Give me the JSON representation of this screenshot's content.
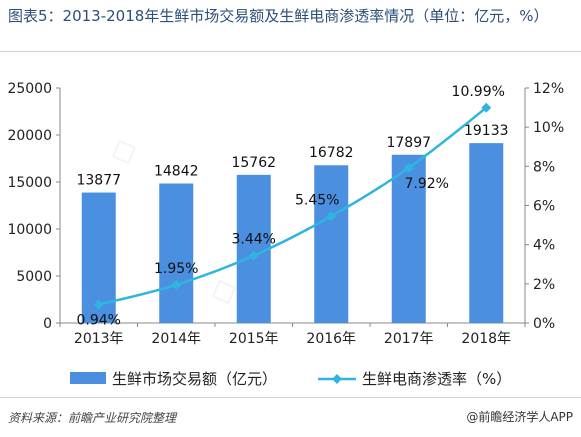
{
  "header": {
    "title": "图表5：2013-2018年生鲜市场交易额及生鲜电商渗透率情况（单位：亿元，%）"
  },
  "footer": {
    "source": "资料来源：前瞻产业研究院整理",
    "brand": "@前瞻经济学人APP"
  },
  "colors": {
    "bar": "#4a8fe0",
    "line": "#2fb5e0",
    "title": "#2c4f7a"
  },
  "chart_data": {
    "type": "bar",
    "categories": [
      "2013年",
      "2014年",
      "2015年",
      "2016年",
      "2017年",
      "2018年"
    ],
    "series": [
      {
        "name": "生鲜市场交易额（亿元）",
        "type": "bar",
        "axis": "left",
        "values": [
          13877,
          14842,
          15762,
          16782,
          17897,
          19133
        ],
        "labels": [
          "13877",
          "14842",
          "15762",
          "16782",
          "17897",
          "19133"
        ]
      },
      {
        "name": "生鲜电商渗透率（%）",
        "type": "line",
        "axis": "right",
        "values": [
          0.94,
          1.95,
          3.44,
          5.45,
          7.92,
          10.99
        ],
        "labels": [
          "0.94%",
          "1.95%",
          "3.44%",
          "5.45%",
          "7.92%",
          "10.99%"
        ]
      }
    ],
    "y_left": {
      "min": 0,
      "max": 25000,
      "ticks": [
        "0",
        "5000",
        "10000",
        "15000",
        "20000",
        "25000"
      ]
    },
    "y_right": {
      "min": 0,
      "max": 12,
      "ticks": [
        "0%",
        "2%",
        "4%",
        "6%",
        "8%",
        "10%",
        "12%"
      ]
    },
    "legend_position": "bottom",
    "grid": false
  }
}
